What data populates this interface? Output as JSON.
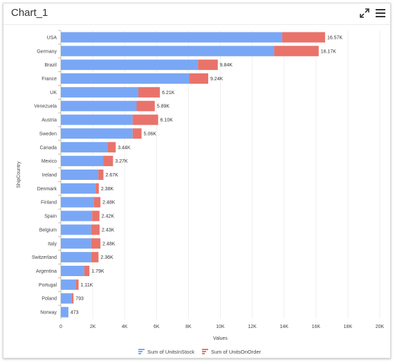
{
  "header": {
    "title": "Chart_1",
    "expand_icon": "expand-icon",
    "menu_icon": "hamburger-menu-icon"
  },
  "colors": {
    "stock": "#7aa7f5",
    "order": "#e9736a",
    "grid": "#eeeeee",
    "axis_text": "#444444"
  },
  "chart_data": {
    "type": "bar",
    "orientation": "horizontal",
    "stacked": true,
    "ylabel": "ShipCountry",
    "xlabel": "Values",
    "xlim": [
      0,
      20000
    ],
    "xticks": [
      0,
      2000,
      4000,
      6000,
      8000,
      10000,
      12000,
      14000,
      16000,
      18000,
      20000
    ],
    "xtick_labels": [
      "0",
      "2K",
      "4K",
      "6K",
      "8K",
      "10K",
      "12K",
      "14K",
      "16K",
      "18K",
      "20K"
    ],
    "grid": true,
    "legend_position": "bottom",
    "categories": [
      "USA",
      "Germany",
      "Brazil",
      "France",
      "UK",
      "Venezuela",
      "Austria",
      "Sweden",
      "Canada",
      "Mexico",
      "Ireland",
      "Denmark",
      "Finland",
      "Spain",
      "Belgium",
      "Italy",
      "Switzerland",
      "Argentina",
      "Portugal",
      "Poland",
      "Norway"
    ],
    "series": [
      {
        "name": "Sum of UnitsInStock",
        "values": [
          13880,
          13380,
          8600,
          8050,
          4860,
          4750,
          4500,
          4500,
          2950,
          2650,
          2350,
          2180,
          2080,
          1960,
          1900,
          1900,
          1900,
          1470,
          940,
          690,
          473
        ]
      },
      {
        "name": "Sum of UnitsOnOrder",
        "values": [
          2690,
          2790,
          1240,
          1190,
          1350,
          1140,
          1600,
          560,
          490,
          620,
          320,
          200,
          400,
          460,
          530,
          580,
          460,
          320,
          170,
          103,
          0
        ]
      }
    ],
    "total_labels": [
      "16.57K",
      "16.17K",
      "9.84K",
      "9.24K",
      "6.21K",
      "5.89K",
      "6.10K",
      "5.06K",
      "3.44K",
      "3.27K",
      "2.67K",
      "2.38K",
      "2.48K",
      "2.42K",
      "2.43K",
      "2.48K",
      "2.36K",
      "1.79K",
      "1.11K",
      "793",
      "473"
    ]
  }
}
